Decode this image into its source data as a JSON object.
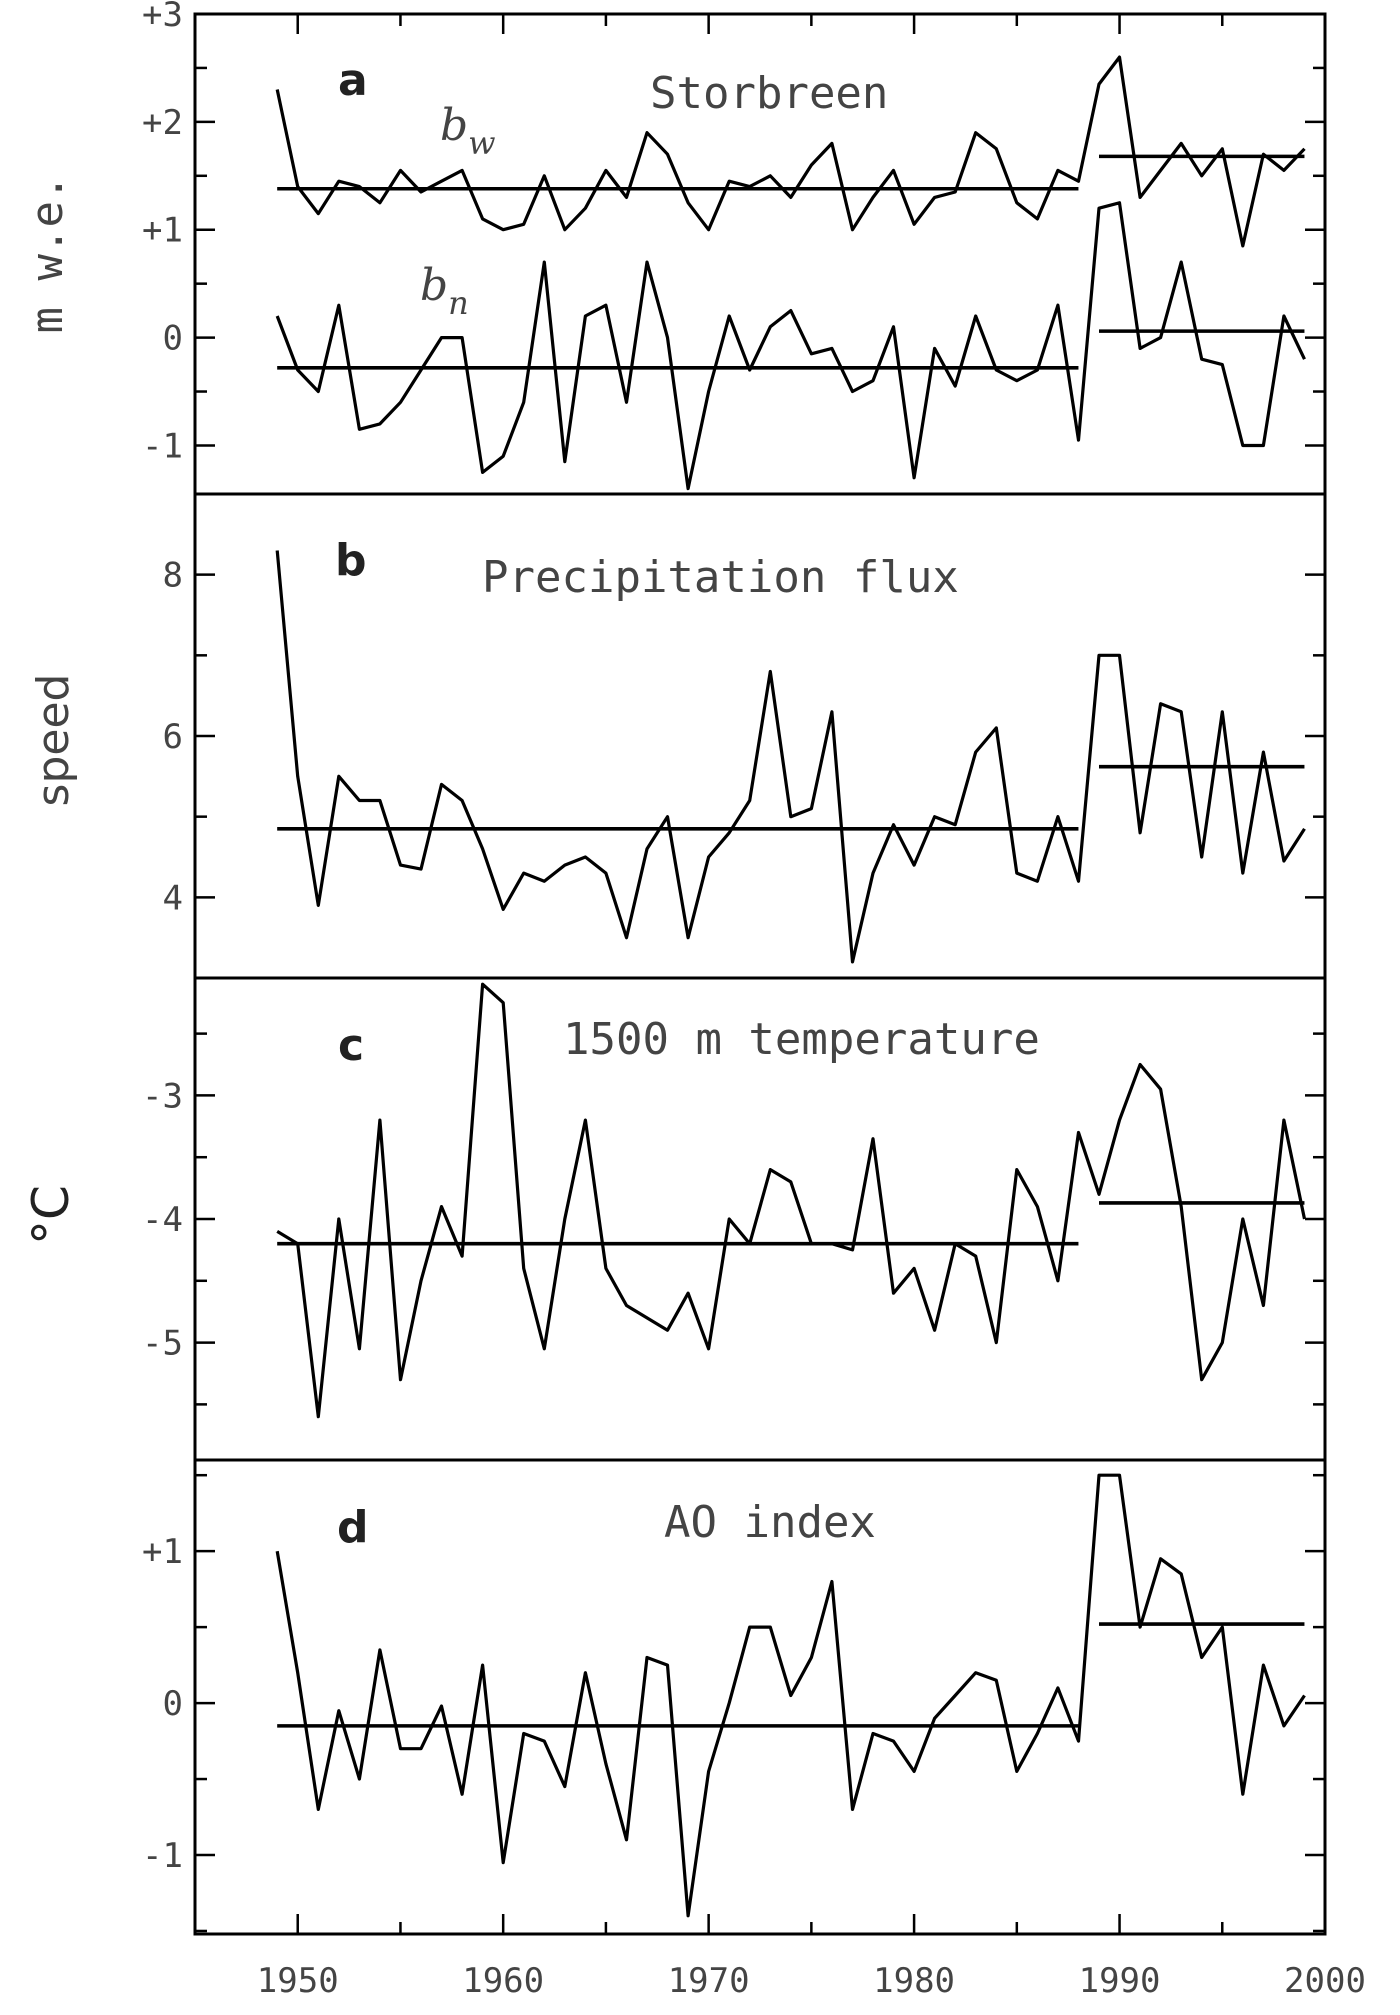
{
  "chart_data": [
    {
      "panel": "a",
      "type": "line",
      "title": "Storbreen",
      "ylabel": "m w.e.",
      "xlim": [
        1945,
        2000
      ],
      "ylim": [
        -1.45,
        3.0
      ],
      "yticks": [
        -1,
        0,
        1,
        2,
        3
      ],
      "yticklabels": [
        "-1",
        "0",
        "+1",
        "+2",
        "+3"
      ],
      "series": [
        {
          "name": "bw",
          "name_main": "b",
          "name_sub": "w",
          "x": [
            1949,
            1950,
            1951,
            1952,
            1953,
            1954,
            1955,
            1956,
            1957,
            1958,
            1959,
            1960,
            1961,
            1962,
            1963,
            1964,
            1965,
            1966,
            1967,
            1968,
            1969,
            1970,
            1971,
            1972,
            1973,
            1974,
            1975,
            1976,
            1977,
            1978,
            1979,
            1980,
            1981,
            1982,
            1983,
            1984,
            1985,
            1986,
            1987,
            1988,
            1989,
            1990,
            1991,
            1992,
            1993,
            1994,
            1995,
            1996,
            1997,
            1998,
            1999
          ],
          "y": [
            2.3,
            1.4,
            1.15,
            1.45,
            1.4,
            1.25,
            1.55,
            1.35,
            1.45,
            1.55,
            1.1,
            1.0,
            1.05,
            1.5,
            1.0,
            1.2,
            1.55,
            1.3,
            1.9,
            1.7,
            1.25,
            1.0,
            1.45,
            1.4,
            1.5,
            1.3,
            1.6,
            1.8,
            1.0,
            1.3,
            1.55,
            1.05,
            1.3,
            1.35,
            1.9,
            1.75,
            1.25,
            1.1,
            1.55,
            1.45,
            2.35,
            2.6,
            1.3,
            1.55,
            1.8,
            1.5,
            1.75,
            0.85,
            1.7,
            1.55,
            1.75
          ],
          "means": [
            {
              "from": 1949,
              "to": 1988,
              "value": 1.38
            },
            {
              "from": 1989,
              "to": 1999,
              "value": 1.68
            }
          ]
        },
        {
          "name": "bn",
          "name_main": "b",
          "name_sub": "n",
          "x": [
            1949,
            1950,
            1951,
            1952,
            1953,
            1954,
            1955,
            1956,
            1957,
            1958,
            1959,
            1960,
            1961,
            1962,
            1963,
            1964,
            1965,
            1966,
            1967,
            1968,
            1969,
            1970,
            1971,
            1972,
            1973,
            1974,
            1975,
            1976,
            1977,
            1978,
            1979,
            1980,
            1981,
            1982,
            1983,
            1984,
            1985,
            1986,
            1987,
            1988,
            1989,
            1990,
            1991,
            1992,
            1993,
            1994,
            1995,
            1996,
            1997,
            1998,
            1999
          ],
          "y": [
            0.2,
            -0.3,
            -0.5,
            0.3,
            -0.85,
            -0.8,
            -0.6,
            -0.3,
            0.0,
            0.0,
            -1.25,
            -1.1,
            -0.6,
            0.7,
            -1.15,
            0.2,
            0.3,
            -0.6,
            0.7,
            0.0,
            -1.4,
            -0.5,
            0.2,
            -0.3,
            0.1,
            0.25,
            -0.15,
            -0.1,
            -0.5,
            -0.4,
            0.1,
            -1.3,
            -0.1,
            -0.45,
            0.2,
            -0.3,
            -0.4,
            -0.3,
            0.3,
            -0.95,
            1.2,
            1.25,
            -0.1,
            0.0,
            0.7,
            -0.2,
            -0.25,
            -1.0,
            -1.0,
            0.2,
            -0.2
          ],
          "means": [
            {
              "from": 1949,
              "to": 1988,
              "value": -0.28
            },
            {
              "from": 1989,
              "to": 1999,
              "value": 0.06
            }
          ]
        }
      ]
    },
    {
      "panel": "b",
      "type": "line",
      "title": "Precipitation flux",
      "ylabel": "speed",
      "xlim": [
        1945,
        2000
      ],
      "ylim": [
        3.0,
        9.0
      ],
      "yticks": [
        4,
        6,
        8
      ],
      "yticklabels": [
        "4",
        "6",
        "8"
      ],
      "series": [
        {
          "x": [
            1949,
            1950,
            1951,
            1952,
            1953,
            1954,
            1955,
            1956,
            1957,
            1958,
            1959,
            1960,
            1961,
            1962,
            1963,
            1964,
            1965,
            1966,
            1967,
            1968,
            1969,
            1970,
            1971,
            1972,
            1973,
            1974,
            1975,
            1976,
            1977,
            1978,
            1979,
            1980,
            1981,
            1982,
            1983,
            1984,
            1985,
            1986,
            1987,
            1988,
            1989,
            1990,
            1991,
            1992,
            1993,
            1994,
            1995,
            1996,
            1997,
            1998,
            1999
          ],
          "y": [
            8.3,
            5.5,
            3.9,
            5.5,
            5.2,
            5.2,
            4.4,
            4.35,
            5.4,
            5.2,
            4.6,
            3.85,
            4.3,
            4.2,
            4.4,
            4.5,
            4.3,
            3.5,
            4.6,
            5.0,
            3.5,
            4.5,
            4.8,
            5.2,
            6.8,
            5.0,
            5.1,
            6.3,
            3.2,
            4.3,
            4.9,
            4.4,
            5.0,
            4.9,
            5.8,
            6.1,
            4.3,
            4.2,
            5.0,
            4.2,
            7.0,
            7.0,
            4.8,
            6.4,
            6.3,
            4.5,
            6.3,
            4.3,
            5.8,
            4.45,
            4.85
          ],
          "means": [
            {
              "from": 1949,
              "to": 1988,
              "value": 4.85
            },
            {
              "from": 1989,
              "to": 1999,
              "value": 5.62
            }
          ]
        }
      ]
    },
    {
      "panel": "c",
      "type": "line",
      "title": "1500 m temperature",
      "ylabel": "°C",
      "xlim": [
        1945,
        2000
      ],
      "ylim": [
        -5.95,
        -2.05
      ],
      "yticks": [
        -5,
        -4,
        -3
      ],
      "yticklabels": [
        "-5",
        "-4",
        "-3"
      ],
      "series": [
        {
          "x": [
            1949,
            1950,
            1951,
            1952,
            1953,
            1954,
            1955,
            1956,
            1957,
            1958,
            1959,
            1960,
            1961,
            1962,
            1963,
            1964,
            1965,
            1966,
            1967,
            1968,
            1969,
            1970,
            1971,
            1972,
            1973,
            1974,
            1975,
            1976,
            1977,
            1978,
            1979,
            1980,
            1981,
            1982,
            1983,
            1984,
            1985,
            1986,
            1987,
            1988,
            1989,
            1990,
            1991,
            1992,
            1993,
            1994,
            1995,
            1996,
            1997,
            1998,
            1999
          ],
          "y": [
            -4.1,
            -4.2,
            -5.6,
            -4.0,
            -5.05,
            -3.2,
            -5.3,
            -4.5,
            -3.9,
            -4.3,
            -2.1,
            -2.25,
            -4.4,
            -5.05,
            -4.0,
            -3.2,
            -4.4,
            -4.7,
            -4.8,
            -4.9,
            -4.6,
            -5.05,
            -4.0,
            -4.2,
            -3.6,
            -3.7,
            -4.2,
            -4.2,
            -4.25,
            -3.35,
            -4.6,
            -4.4,
            -4.9,
            -4.2,
            -4.3,
            -5.0,
            -3.6,
            -3.9,
            -4.5,
            -3.3,
            -3.8,
            -3.2,
            -2.75,
            -2.95,
            -3.9,
            -5.3,
            -5.0,
            -4.0,
            -4.7,
            -3.2,
            -4.0
          ],
          "means": [
            {
              "from": 1949,
              "to": 1988,
              "value": -4.2
            },
            {
              "from": 1989,
              "to": 1999,
              "value": -3.87
            }
          ]
        }
      ]
    },
    {
      "panel": "d",
      "type": "line",
      "title": "AO index",
      "xlim": [
        1945,
        2000
      ],
      "ylim": [
        -1.52,
        1.6
      ],
      "yticks": [
        -1,
        0,
        1
      ],
      "yticklabels": [
        "-1",
        "0",
        "+1"
      ],
      "xticks": [
        1950,
        1960,
        1970,
        1980,
        1990,
        2000
      ],
      "xticklabels": [
        "1950",
        "1960",
        "1970",
        "1980",
        "1990",
        "2000"
      ],
      "series": [
        {
          "x": [
            1949,
            1950,
            1951,
            1952,
            1953,
            1954,
            1955,
            1956,
            1957,
            1958,
            1959,
            1960,
            1961,
            1962,
            1963,
            1964,
            1965,
            1966,
            1967,
            1968,
            1969,
            1970,
            1971,
            1972,
            1973,
            1974,
            1975,
            1976,
            1977,
            1978,
            1979,
            1980,
            1981,
            1982,
            1983,
            1984,
            1985,
            1986,
            1987,
            1988,
            1989,
            1990,
            1991,
            1992,
            1993,
            1994,
            1995,
            1996,
            1997,
            1998,
            1999
          ],
          "y": [
            1.0,
            0.2,
            -0.7,
            -0.05,
            -0.5,
            0.35,
            -0.3,
            -0.3,
            -0.02,
            -0.6,
            0.25,
            -1.05,
            -0.2,
            -0.25,
            -0.55,
            0.2,
            -0.4,
            -0.9,
            0.3,
            0.25,
            -1.4,
            -0.45,
            0.0,
            0.5,
            0.5,
            0.05,
            0.3,
            0.8,
            -0.7,
            -0.2,
            -0.25,
            -0.45,
            -0.1,
            0.05,
            0.2,
            0.15,
            -0.45,
            -0.2,
            0.1,
            -0.25,
            1.5,
            1.5,
            0.5,
            0.95,
            0.85,
            0.3,
            0.5,
            -0.6,
            0.25,
            -0.15,
            0.05
          ],
          "means": [
            {
              "from": 1949,
              "to": 1988,
              "value": -0.15
            },
            {
              "from": 1989,
              "to": 1999,
              "value": 0.52
            }
          ]
        }
      ]
    }
  ]
}
